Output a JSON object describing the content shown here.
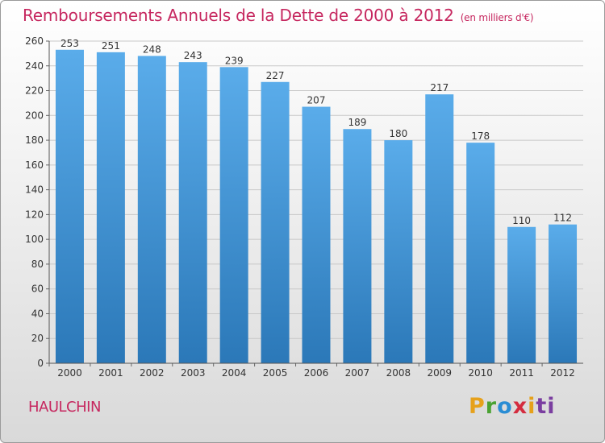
{
  "title": "Remboursements Annuels de la Dette de 2000 à 2012",
  "unit_note": "(en milliers d'€)",
  "city": "HAULCHIN",
  "logo_text": "Proxiti",
  "logo_letters": [
    "P",
    "r",
    "o",
    "x",
    "i",
    "ti"
  ],
  "colors": {
    "title": "#c6275f",
    "bar_top": "#5aacea",
    "bar_bottom": "#2b78b8",
    "grid": "#c8c8c8",
    "axis_text": "#333333"
  },
  "chart_data": {
    "type": "bar",
    "title": "Remboursements Annuels de la Dette de 2000 à 2012",
    "xlabel": "",
    "ylabel": "",
    "categories": [
      "2000",
      "2001",
      "2002",
      "2003",
      "2004",
      "2005",
      "2006",
      "2007",
      "2008",
      "2009",
      "2010",
      "2011",
      "2012"
    ],
    "values": [
      253,
      251,
      248,
      243,
      239,
      227,
      207,
      189,
      180,
      217,
      178,
      110,
      112
    ],
    "ylim": [
      0,
      260
    ],
    "yticks": [
      0,
      20,
      40,
      60,
      80,
      100,
      120,
      140,
      160,
      180,
      200,
      220,
      240,
      260
    ],
    "grid": true,
    "legend": "none"
  }
}
